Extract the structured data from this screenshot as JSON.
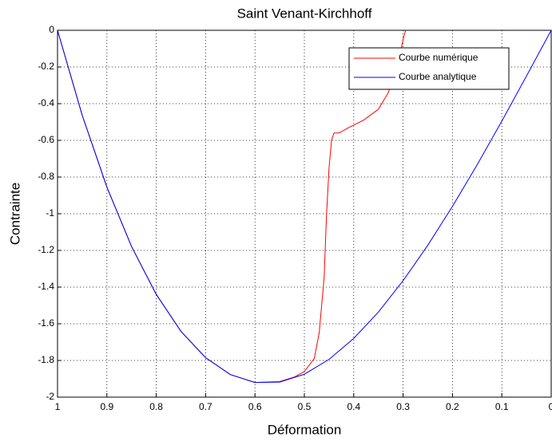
{
  "chart_data": {
    "type": "line",
    "title": "Saint Venant-Kirchhoff",
    "xlabel": "Déformation",
    "ylabel": "Contrainte",
    "xlim": [
      1,
      0
    ],
    "ylim": [
      -2,
      0
    ],
    "xticks": [
      1,
      0.9,
      0.8,
      0.7,
      0.6,
      0.5,
      0.4,
      0.3,
      0.2,
      0.1,
      0
    ],
    "yticks": [
      0,
      -0.2,
      -0.4,
      -0.6,
      -0.8,
      -1,
      -1.2,
      -1.4,
      -1.6,
      -1.8,
      -2
    ],
    "grid": true,
    "legend": "northeast",
    "series": [
      {
        "name": "Courbe numérique",
        "color": "#ff0000",
        "x": [
          1,
          0.95,
          0.9,
          0.85,
          0.8,
          0.75,
          0.7,
          0.65,
          0.6,
          0.55,
          0.52,
          0.5,
          0.48,
          0.47,
          0.46,
          0.455,
          0.45,
          0.445,
          0.44,
          0.43,
          0.41,
          0.38,
          0.35,
          0.33,
          0.31,
          0.3,
          0.295
        ],
        "values": [
          0,
          -0.463,
          -0.855,
          -1.179,
          -1.44,
          -1.641,
          -1.785,
          -1.877,
          -1.92,
          -1.915,
          -1.89,
          -1.86,
          -1.79,
          -1.65,
          -1.35,
          -1.0,
          -0.75,
          -0.6,
          -0.56,
          -0.56,
          -0.53,
          -0.49,
          -0.43,
          -0.34,
          -0.18,
          -0.05,
          0
        ]
      },
      {
        "name": "Courbe analytique",
        "color": "#0000ff",
        "x": [
          1,
          0.95,
          0.9,
          0.85,
          0.8,
          0.75,
          0.7,
          0.65,
          0.6,
          0.55,
          0.5,
          0.45,
          0.4,
          0.35,
          0.3,
          0.25,
          0.2,
          0.15,
          0.1,
          0.05,
          0
        ],
        "values": [
          0,
          -0.463,
          -0.855,
          -1.179,
          -1.44,
          -1.641,
          -1.785,
          -1.877,
          -1.92,
          -1.918,
          -1.875,
          -1.794,
          -1.68,
          -1.536,
          -1.365,
          -1.172,
          -0.96,
          -0.733,
          -0.495,
          -0.249,
          0
        ]
      }
    ]
  }
}
